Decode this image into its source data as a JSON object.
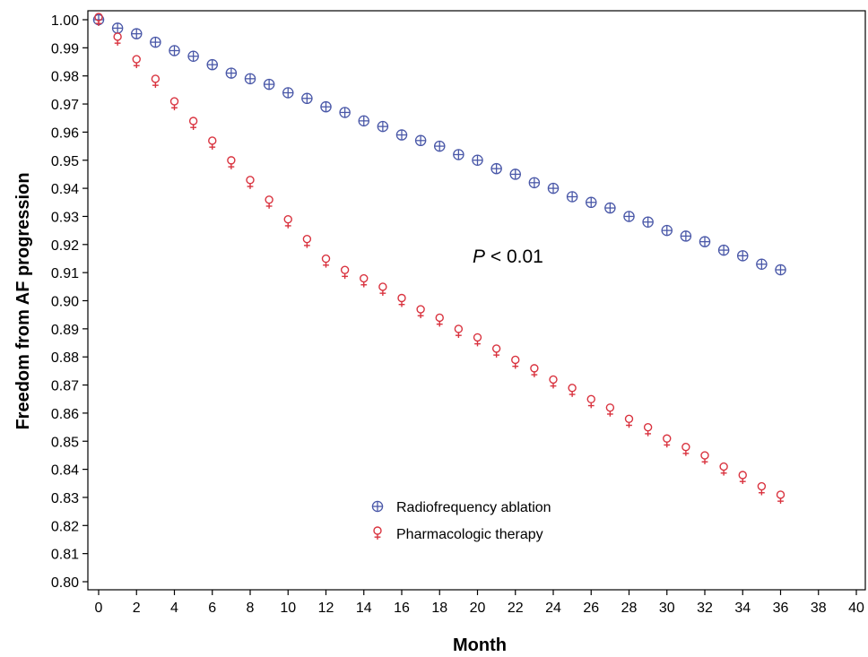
{
  "chart_data": {
    "type": "scatter",
    "title": "",
    "xlabel": "Month",
    "ylabel": "Freedom from AF progression",
    "xlim": [
      0,
      40
    ],
    "ylim": [
      0.8,
      1.0
    ],
    "x_ticks": [
      "0",
      "2",
      "4",
      "6",
      "8",
      "10",
      "12",
      "14",
      "16",
      "18",
      "20",
      "22",
      "24",
      "26",
      "28",
      "30",
      "32",
      "34",
      "36",
      "38",
      "40"
    ],
    "y_ticks": [
      "0.80",
      "0.81",
      "0.82",
      "0.83",
      "0.84",
      "0.85",
      "0.86",
      "0.87",
      "0.88",
      "0.89",
      "0.90",
      "0.91",
      "0.92",
      "0.93",
      "0.94",
      "0.95",
      "0.96",
      "0.97",
      "0.98",
      "0.99",
      "1.00"
    ],
    "grid": false,
    "legend_position": "bottom-center",
    "annotation": {
      "italic": "P",
      "rest": " < 0.01"
    },
    "series": [
      {
        "name": "Radiofrequency ablation",
        "marker": "circle-plus",
        "color": "#4a58a8",
        "x": [
          0,
          1,
          2,
          3,
          4,
          5,
          6,
          7,
          8,
          9,
          10,
          11,
          12,
          13,
          14,
          15,
          16,
          17,
          18,
          19,
          20,
          21,
          22,
          23,
          24,
          25,
          26,
          27,
          28,
          29,
          30,
          31,
          32,
          33,
          34,
          35,
          36
        ],
        "y": [
          1.0,
          0.997,
          0.995,
          0.992,
          0.989,
          0.987,
          0.984,
          0.981,
          0.979,
          0.977,
          0.974,
          0.972,
          0.969,
          0.967,
          0.964,
          0.962,
          0.959,
          0.957,
          0.955,
          0.952,
          0.95,
          0.947,
          0.945,
          0.942,
          0.94,
          0.937,
          0.935,
          0.933,
          0.93,
          0.928,
          0.925,
          0.923,
          0.921,
          0.918,
          0.916,
          0.913,
          0.911
        ]
      },
      {
        "name": "Pharmacologic therapy",
        "marker": "venus",
        "color": "#d9333f",
        "x": [
          0,
          1,
          2,
          3,
          4,
          5,
          6,
          7,
          8,
          9,
          10,
          11,
          12,
          13,
          14,
          15,
          16,
          17,
          18,
          19,
          20,
          21,
          22,
          23,
          24,
          25,
          26,
          27,
          28,
          29,
          30,
          31,
          32,
          33,
          34,
          35,
          36
        ],
        "y": [
          1.0,
          0.993,
          0.985,
          0.978,
          0.97,
          0.963,
          0.956,
          0.949,
          0.942,
          0.935,
          0.928,
          0.921,
          0.914,
          0.91,
          0.907,
          0.904,
          0.9,
          0.896,
          0.893,
          0.889,
          0.886,
          0.882,
          0.878,
          0.875,
          0.871,
          0.868,
          0.864,
          0.861,
          0.857,
          0.854,
          0.85,
          0.847,
          0.844,
          0.84,
          0.837,
          0.833,
          0.83
        ]
      }
    ]
  }
}
